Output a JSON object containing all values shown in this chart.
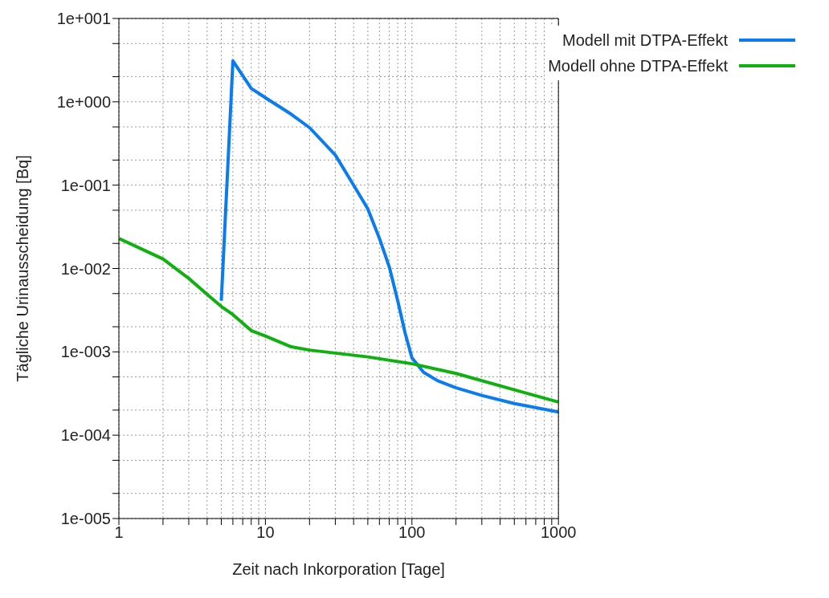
{
  "chart_data": {
    "type": "line",
    "xlabel": "Zeit nach Inkorporation [Tage]",
    "ylabel": "Tägliche Urinausscheidung [Bq]",
    "log": "xy",
    "grid": true,
    "legend": "top right",
    "line_style": "solid",
    "marker": "none",
    "xlim": [
      1,
      1000
    ],
    "ylim": [
      1e-05,
      10
    ],
    "xticks": [
      1,
      {
        "value": 2,
        "label": null
      },
      {
        "value": 3,
        "label": null
      },
      {
        "value": 4,
        "label": null
      },
      {
        "value": 5,
        "label": null
      },
      {
        "value": 6,
        "label": null
      },
      {
        "value": 7,
        "label": null
      },
      {
        "value": 8,
        "label": null
      },
      {
        "value": 9,
        "label": null
      },
      10,
      {
        "value": 20,
        "label": null
      },
      {
        "value": 30,
        "label": null
      },
      {
        "value": 40,
        "label": null
      },
      {
        "value": 50,
        "label": null
      },
      {
        "value": 60,
        "label": null
      },
      {
        "value": 70,
        "label": null
      },
      {
        "value": 80,
        "label": null
      },
      {
        "value": 90,
        "label": null
      },
      100,
      {
        "value": 200,
        "label": null
      },
      {
        "value": 300,
        "label": null
      },
      {
        "value": 400,
        "label": null
      },
      {
        "value": 500,
        "label": null
      },
      {
        "value": 600,
        "label": null
      },
      {
        "value": 700,
        "label": null
      },
      {
        "value": 800,
        "label": null
      },
      {
        "value": 900,
        "label": null
      },
      1000
    ],
    "yticks": [
      {
        "value": 1e-05,
        "label": "1e-005"
      },
      {
        "value": 2e-05,
        "label": null
      },
      {
        "value": 5e-05,
        "label": null
      },
      {
        "value": 0.0001,
        "label": "1e-004"
      },
      {
        "value": 0.0002,
        "label": null
      },
      {
        "value": 0.0005,
        "label": null
      },
      {
        "value": 0.001,
        "label": "1e-003"
      },
      {
        "value": 0.002,
        "label": null
      },
      {
        "value": 0.005,
        "label": null
      },
      {
        "value": 0.01,
        "label": "1e-002"
      },
      {
        "value": 0.02,
        "label": null
      },
      {
        "value": 0.05,
        "label": null
      },
      {
        "value": 0.1,
        "label": "1e-001"
      },
      {
        "value": 0.2,
        "label": null
      },
      {
        "value": 0.5,
        "label": null
      },
      {
        "value": 1,
        "label": "1e+000"
      },
      {
        "value": 2,
        "label": null
      },
      {
        "value": 5,
        "label": null
      },
      {
        "value": 10,
        "label": "1e+001"
      }
    ],
    "series": [
      {
        "name": "Modell mit DTPA-Effekt",
        "color": "#0a7cf0",
        "x": [
          5,
          6,
          8,
          10,
          15,
          20,
          30,
          40,
          50,
          60,
          70,
          80,
          90,
          100,
          120,
          150,
          200,
          300,
          500,
          1000
        ],
        "values": [
          0.0041,
          3.1,
          1.45,
          1.12,
          0.71,
          0.49,
          0.23,
          0.1,
          0.052,
          0.023,
          0.0105,
          0.0041,
          0.00166,
          0.00085,
          0.00057,
          0.00045,
          0.00037,
          0.0003,
          0.00024,
          0.00019
        ]
      },
      {
        "name": "Modell ohne DTPA-Effekt",
        "color": "#10b010",
        "x": [
          1,
          2,
          3,
          4,
          5,
          6,
          8,
          10,
          15,
          20,
          50,
          100,
          200,
          500,
          1000
        ],
        "values": [
          0.023,
          0.013,
          0.0076,
          0.0049,
          0.0035,
          0.0028,
          0.0018,
          0.00155,
          0.00115,
          0.00105,
          0.00087,
          0.00072,
          0.00055,
          0.00035,
          0.00025
        ]
      }
    ]
  }
}
